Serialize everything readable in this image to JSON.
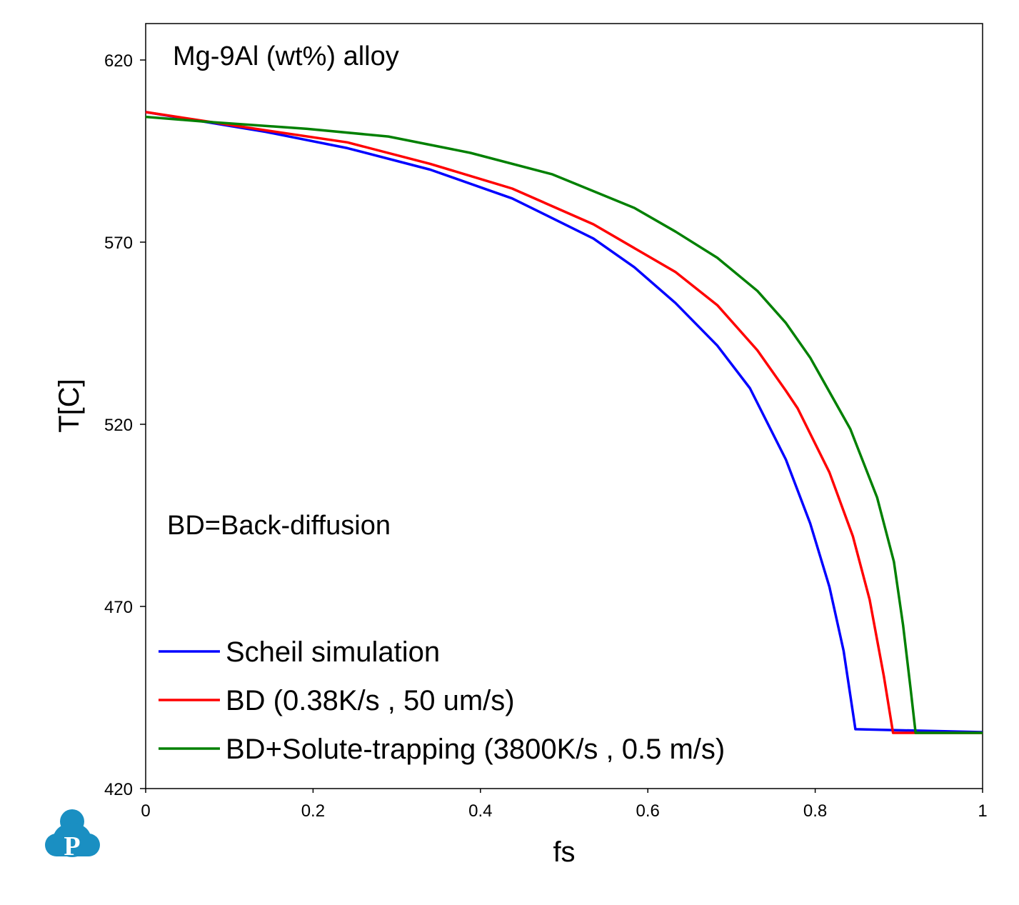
{
  "chart_data": {
    "type": "line",
    "title": "Mg-9Al (wt%) alloy",
    "annotation": "BD=Back-diffusion",
    "xlabel": "fs",
    "ylabel": "T[C]",
    "xlim": [
      0,
      1
    ],
    "ylim": [
      420,
      630
    ],
    "xticks": [
      0,
      0.2,
      0.4,
      0.6,
      0.8,
      1
    ],
    "xtick_labels": [
      "0",
      "0.2",
      "0.4",
      "0.6",
      "0.8",
      "1"
    ],
    "yticks": [
      420,
      470,
      520,
      570,
      620
    ],
    "ytick_labels": [
      "420",
      "470",
      "520",
      "570",
      "620"
    ],
    "grid": false,
    "legend_position": "bottom-left",
    "series": [
      {
        "name": "Scheil simulation",
        "color": "#0000ff",
        "x": [
          0,
          0.143,
          0.241,
          0.34,
          0.438,
          0.535,
          0.584,
          0.633,
          0.683,
          0.722,
          0.765,
          0.794,
          0.817,
          0.834,
          0.848,
          1.0
        ],
        "y": [
          605.7,
          600.3,
          595.8,
          589.9,
          582.0,
          571.0,
          563.1,
          553.3,
          541.6,
          529.9,
          510.3,
          492.8,
          475.4,
          457.8,
          436.3,
          435.5
        ]
      },
      {
        "name": "BD (0.38K/s , 50 um/s)",
        "color": "#ff0000",
        "x": [
          0,
          0.143,
          0.241,
          0.34,
          0.438,
          0.535,
          0.633,
          0.683,
          0.731,
          0.765,
          0.779,
          0.817,
          0.845,
          0.865,
          0.882,
          0.893,
          1.0
        ],
        "y": [
          605.7,
          600.7,
          597.4,
          591.5,
          584.7,
          574.9,
          561.8,
          552.7,
          540.3,
          529.2,
          524.4,
          506.8,
          489.3,
          471.9,
          450.9,
          435.3,
          435.3
        ]
      },
      {
        "name": "BD+Solute-trapping (3800K/s , 0.5 m/s)",
        "color": "#008000",
        "x": [
          0,
          0.07,
          0.193,
          0.29,
          0.388,
          0.486,
          0.584,
          0.633,
          0.683,
          0.731,
          0.765,
          0.794,
          0.842,
          0.874,
          0.894,
          0.905,
          0.914,
          0.92,
          1.0
        ],
        "y": [
          604.4,
          603.1,
          601.1,
          599.0,
          594.5,
          588.6,
          579.4,
          572.9,
          565.7,
          556.6,
          547.8,
          538.3,
          518.7,
          499.9,
          482.3,
          464.8,
          447.4,
          435.3,
          435.3
        ]
      }
    ]
  },
  "logo": {
    "letter": "P"
  }
}
